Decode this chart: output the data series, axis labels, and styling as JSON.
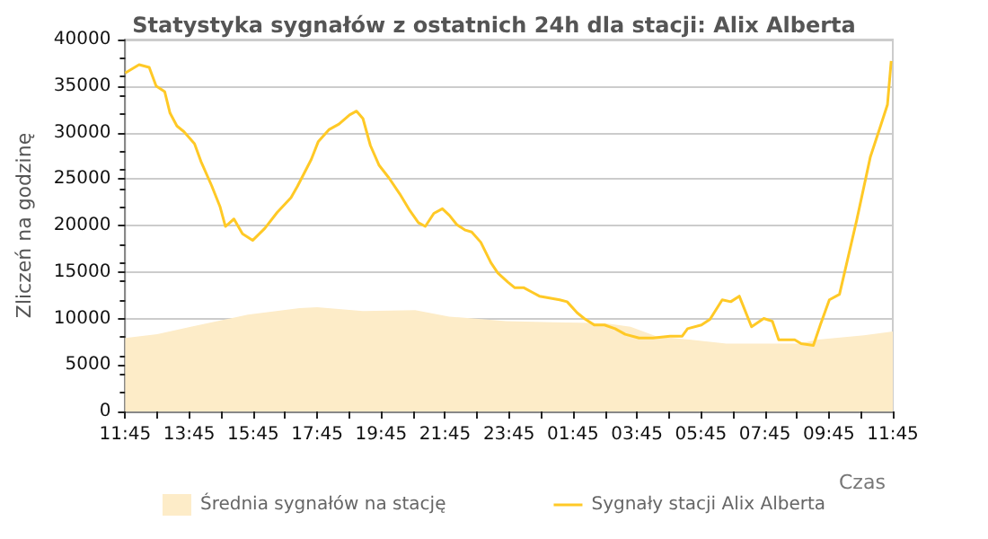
{
  "chart_data": {
    "type": "line",
    "title": "Statystyka sygnałów z ostatnich 24h dla stacji: Alix Alberta",
    "xlabel": "Czas",
    "ylabel": "Zliczeń na godzinę",
    "series": [
      {
        "name": "Średnia sygnałów na stację",
        "type": "area",
        "color": "#fdecc8",
        "x": [
          "--01-01T11:45",
          "--01-01T12:45",
          "--01-01T13:48",
          "--01-01T15:35",
          "--01-01T17:12",
          "--01-01T17:45",
          "--01-01T19:11",
          "--01-01T20:49",
          "--01-01T21:53",
          "--01-01T23:40",
          "--01-02T01:09",
          "--01-02T02:45",
          "--01-02T03:33",
          "--01-02T04:21",
          "--01-02T05:27",
          "--01-02T06:33",
          "--01-02T08:51",
          "--01-02T09:21",
          "--01-02T10:51",
          "--01-02T11:45"
        ],
        "values": [
          7900,
          8300,
          9100,
          10400,
          11100,
          11200,
          10800,
          10900,
          10200,
          9700,
          9600,
          9500,
          9100,
          8100,
          7700,
          7300,
          7300,
          7700,
          8200,
          8600
        ]
      },
      {
        "name": "Sygnały stacji Alix Alberta",
        "color": "#ffc926",
        "x": [
          "--01-01T11:45",
          "--01-01T12:11",
          "--01-01T12:30",
          "--01-01T12:43",
          "--01-01T12:59",
          "--01-01T13:09",
          "--01-01T13:22",
          "--01-01T13:35",
          "--01-01T13:55",
          "--01-01T14:07",
          "--01-01T14:27",
          "--01-01T14:43",
          "--01-01T14:53",
          "--01-01T15:09",
          "--01-01T15:25",
          "--01-01T15:44",
          "--01-01T16:07",
          "--01-01T16:30",
          "--01-01T16:56",
          "--01-01T17:08",
          "--01-01T17:34",
          "--01-01T17:47",
          "--01-01T18:07",
          "--01-01T18:26",
          "--01-01T18:46",
          "--01-01T18:59",
          "--01-01T19:11",
          "--01-01T19:25",
          "--01-01T19:41",
          "--01-01T20:00",
          "--01-01T20:20",
          "--01-01T20:39",
          "--01-01T20:55",
          "--01-01T21:08",
          "--01-01T21:24",
          "--01-01T21:40",
          "--01-01T21:53",
          "--01-01T22:07",
          "--01-01T22:23",
          "--01-01T22:35",
          "--01-01T22:52",
          "--01-01T23:11",
          "--01-01T23:24",
          "--01-01T23:43",
          "--01-01T23:56",
          "--01-02T00:13",
          "--01-02T00:29",
          "--01-02T00:42",
          "--01-02T01:01",
          "--01-02T01:20",
          "--01-02T01:34",
          "--01-02T01:53",
          "--01-02T02:06",
          "--01-02T02:25",
          "--01-02T02:44",
          "--01-02T03:04",
          "--01-02T03:23",
          "--01-02T03:49",
          "--01-02T04:15",
          "--01-02T04:47",
          "--01-02T05:10",
          "--01-02T05:20",
          "--01-02T05:46",
          "--01-02T06:02",
          "--01-02T06:25",
          "--01-02T06:41",
          "--01-02T06:57",
          "--01-02T07:20",
          "--01-02T07:43",
          "--01-02T07:59",
          "--01-02T08:11",
          "--01-02T08:41",
          "--01-02T08:53",
          "--01-02T09:16",
          "--01-02T09:29",
          "--01-02T09:46",
          "--01-02T10:05",
          "--01-02T10:37",
          "--01-02T11:03",
          "--01-02T11:22",
          "--01-02T11:35",
          "--01-02T11:42"
        ],
        "values": [
          36400,
          37300,
          37000,
          35000,
          34400,
          32100,
          30700,
          30100,
          28800,
          26900,
          24300,
          22000,
          19900,
          20700,
          19100,
          18400,
          19700,
          21400,
          23000,
          24200,
          27100,
          29000,
          30300,
          30900,
          31900,
          32300,
          31500,
          28600,
          26500,
          25100,
          23400,
          21600,
          20300,
          19900,
          21300,
          21800,
          21100,
          20100,
          19500,
          19300,
          18200,
          16000,
          14900,
          13900,
          13300,
          13300,
          12800,
          12400,
          12200,
          12000,
          11800,
          10600,
          10000,
          9300,
          9300,
          8900,
          8300,
          7900,
          7900,
          8100,
          8100,
          8900,
          9300,
          9900,
          12000,
          11800,
          12400,
          9100,
          10000,
          9700,
          7700,
          7700,
          7300,
          7100,
          9300,
          12000,
          12600,
          20500,
          27400,
          30700,
          33000,
          37700
        ]
      }
    ],
    "xlim": [
      "--01-01T11:45",
      "--01-02T11:45"
    ],
    "xticks": [
      {
        "value": "--01-01T11:45",
        "label": "11:45"
      },
      {
        "value": "--01-01T12:45",
        "label": null
      },
      {
        "value": "--01-01T13:45",
        "label": "13:45"
      },
      {
        "value": "--01-01T14:45",
        "label": null
      },
      {
        "value": "--01-01T15:45",
        "label": "15:45"
      },
      {
        "value": "--01-01T16:45",
        "label": null
      },
      {
        "value": "--01-01T17:45",
        "label": "17:45"
      },
      {
        "value": "--01-01T18:45",
        "label": null
      },
      {
        "value": "--01-01T19:45",
        "label": "19:45"
      },
      {
        "value": "--01-01T20:45",
        "label": null
      },
      {
        "value": "--01-01T21:45",
        "label": "21:45"
      },
      {
        "value": "--01-01T22:45",
        "label": null
      },
      {
        "value": "--01-01T23:45",
        "label": "23:45"
      },
      {
        "value": "--01-02T00:45",
        "label": null
      },
      {
        "value": "--01-02T01:45",
        "label": "01:45"
      },
      {
        "value": "--01-02T02:45",
        "label": null
      },
      {
        "value": "--01-02T03:45",
        "label": "03:45"
      },
      {
        "value": "--01-02T04:45",
        "label": null
      },
      {
        "value": "--01-02T05:45",
        "label": "05:45"
      },
      {
        "value": "--01-02T06:45",
        "label": null
      },
      {
        "value": "--01-02T07:45",
        "label": "07:45"
      },
      {
        "value": "--01-02T08:45",
        "label": null
      },
      {
        "value": "--01-02T09:45",
        "label": "09:45"
      },
      {
        "value": "--01-02T10:45",
        "label": null
      },
      {
        "value": "--01-02T11:45",
        "label": "11:45"
      }
    ],
    "ylim": [
      0,
      40000
    ],
    "yticks": [
      0,
      5000,
      10000,
      15000,
      20000,
      25000,
      30000,
      35000,
      40000
    ],
    "grid": "y",
    "legend": "bottom",
    "marker": "none",
    "line_style": "solid"
  }
}
